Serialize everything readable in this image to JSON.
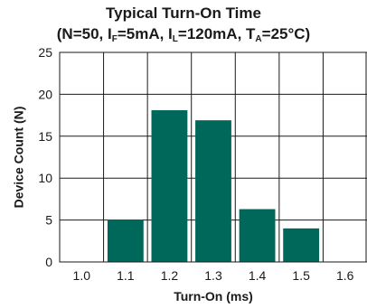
{
  "chart_data": {
    "type": "bar",
    "title_line1": "Typical Turn-On Time",
    "title_line2": {
      "prefix": "(N=50, I",
      "sub1": "F",
      "part2": "=5mA, I",
      "sub2": "L",
      "part3": "=120mA, T",
      "sub3": "A",
      "suffix": "=25°C)"
    },
    "xlabel": "Turn-On (ms)",
    "ylabel": "Device Count (N)",
    "x_ticks": [
      "1.0",
      "1.1",
      "1.2",
      "1.3",
      "1.4",
      "1.5",
      "1.6"
    ],
    "y_ticks": [
      0,
      5,
      10,
      15,
      20,
      25
    ],
    "ylim": [
      0,
      25
    ],
    "categories": [
      "1.1",
      "1.2",
      "1.3",
      "1.4",
      "1.5"
    ],
    "values": [
      5,
      18.1,
      16.9,
      6.3,
      4
    ],
    "bar_color": "#00685a",
    "grid": true
  }
}
